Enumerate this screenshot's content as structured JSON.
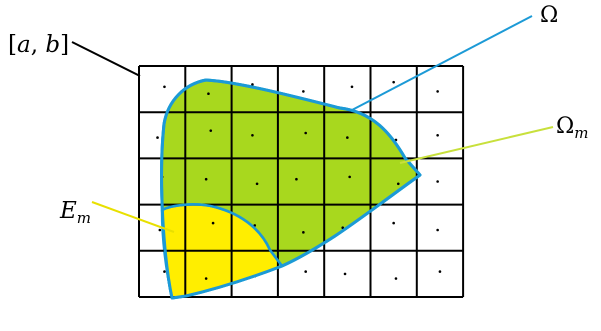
{
  "labels": {
    "interval": {
      "open": "[",
      "a": "a",
      "comma": ", ",
      "b": "b",
      "close": "]"
    },
    "omega": {
      "base": "Ω"
    },
    "omega_m": {
      "base": "Ω",
      "sub": "m"
    },
    "e_m": {
      "base": "E",
      "sub": "m"
    }
  },
  "grid": {
    "columns": 7,
    "rows": 5
  },
  "colors": {
    "grid_lines": "#000000",
    "omega_fill": "#a8d81e",
    "omega_outline": "#1c9ad6",
    "e_m_fill": "#ffee00",
    "omega_m_leader": "#c8e03c",
    "e_m_leader": "#e8e000",
    "interval_leader": "#000000",
    "sample_points": "#000000"
  }
}
